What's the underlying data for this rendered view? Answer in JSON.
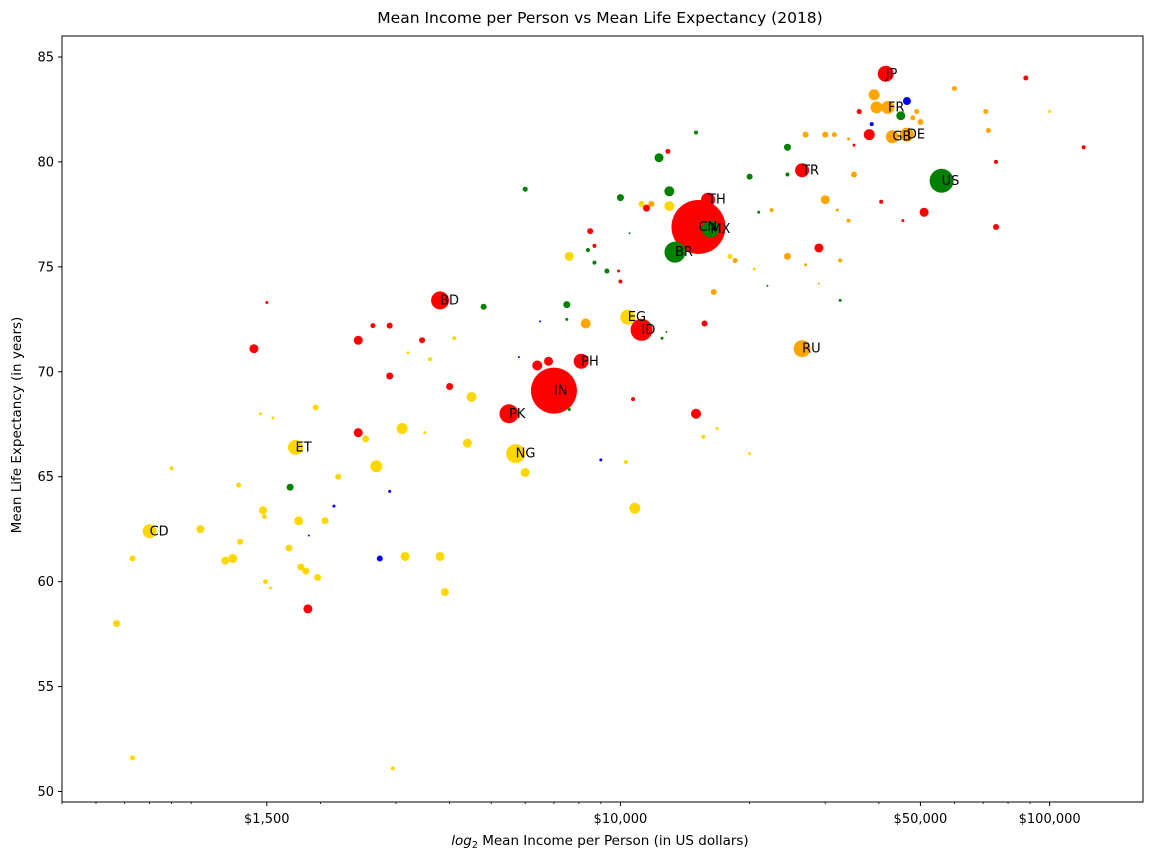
{
  "chart_data": {
    "type": "scatter",
    "title": "Mean Income per Person vs Mean Life Expectancy (2018)",
    "xlabel_prefix": "log",
    "xlabel_sub": "2",
    "xlabel_rest": " Mean Income per Person (in US dollars)",
    "ylabel": "Mean Life Expectancy (in years)",
    "x_scale": "log",
    "xlim": [
      500,
      165000
    ],
    "ylim": [
      49.5,
      86
    ],
    "x_ticks": [
      {
        "value": 1500,
        "label": "$1,500"
      },
      {
        "value": 10000,
        "label": "$10,000"
      },
      {
        "value": 50000,
        "label": "$50,000"
      },
      {
        "value": 100000,
        "label": "$100,000"
      }
    ],
    "y_ticks": [
      {
        "value": 50,
        "label": "50"
      },
      {
        "value": 55,
        "label": "55"
      },
      {
        "value": 60,
        "label": "60"
      },
      {
        "value": 65,
        "label": "65"
      },
      {
        "value": 70,
        "label": "70"
      },
      {
        "value": 75,
        "label": "75"
      },
      {
        "value": 80,
        "label": "80"
      },
      {
        "value": 85,
        "label": "85"
      }
    ],
    "grid": false,
    "legend": "none",
    "colors": {
      "red": "#ff0000",
      "gold": "#ffd700",
      "orange": "#ffa500",
      "green": "#008000",
      "blue": "#0000ff"
    },
    "points": [
      {
        "x": 15200,
        "y": 76.9,
        "r": 27,
        "c": "red",
        "label": "CN"
      },
      {
        "x": 7000,
        "y": 69.1,
        "r": 23,
        "c": "red",
        "label": "IN"
      },
      {
        "x": 56000,
        "y": 79.1,
        "r": 12,
        "c": "green",
        "label": "US"
      },
      {
        "x": 11200,
        "y": 72.0,
        "r": 11,
        "c": "red",
        "label": "ID"
      },
      {
        "x": 13400,
        "y": 75.7,
        "r": 10.5,
        "c": "green",
        "label": "BR"
      },
      {
        "x": 5500,
        "y": 68.0,
        "r": 9.5,
        "c": "red",
        "label": "PK"
      },
      {
        "x": 5700,
        "y": 66.1,
        "r": 9.5,
        "c": "gold",
        "label": "NG"
      },
      {
        "x": 3800,
        "y": 73.4,
        "r": 9,
        "c": "red",
        "label": "BD"
      },
      {
        "x": 26500,
        "y": 71.1,
        "r": 8.5,
        "c": "orange",
        "label": "RU"
      },
      {
        "x": 16200,
        "y": 76.8,
        "r": 8.5,
        "c": "green",
        "label": "MX"
      },
      {
        "x": 41500,
        "y": 84.2,
        "r": 8,
        "c": "red",
        "label": "JP"
      },
      {
        "x": 1750,
        "y": 66.4,
        "r": 7.5,
        "c": "gold",
        "label": "ET"
      },
      {
        "x": 8100,
        "y": 70.5,
        "r": 7.5,
        "c": "red",
        "label": "PH"
      },
      {
        "x": 10400,
        "y": 72.6,
        "r": 7.5,
        "c": "gold",
        "label": "EG"
      },
      {
        "x": 26500,
        "y": 79.6,
        "r": 7,
        "c": "red",
        "label": "TR"
      },
      {
        "x": 16000,
        "y": 78.2,
        "r": 7,
        "c": "red",
        "label": "TH"
      },
      {
        "x": 46500,
        "y": 81.3,
        "r": 7,
        "c": "orange",
        "label": "DE"
      },
      {
        "x": 43000,
        "y": 81.2,
        "r": 6.5,
        "c": "orange",
        "label": "GB"
      },
      {
        "x": 42000,
        "y": 82.6,
        "r": 6.5,
        "c": "orange",
        "label": "FR"
      },
      {
        "x": 800,
        "y": 62.4,
        "r": 7,
        "c": "gold",
        "label": "CD"
      },
      {
        "x": 39000,
        "y": 83.2,
        "r": 5.5,
        "c": "orange"
      },
      {
        "x": 39500,
        "y": 82.6,
        "r": 6,
        "c": "orange"
      },
      {
        "x": 38000,
        "y": 81.3,
        "r": 5.5,
        "c": "red"
      },
      {
        "x": 46500,
        "y": 82.9,
        "r": 4,
        "c": "blue"
      },
      {
        "x": 45000,
        "y": 82.2,
        "r": 4.5,
        "c": "green"
      },
      {
        "x": 48000,
        "y": 82.1,
        "r": 2.5,
        "c": "orange"
      },
      {
        "x": 50000,
        "y": 81.9,
        "r": 3,
        "c": "orange"
      },
      {
        "x": 49000,
        "y": 82.4,
        "r": 2.5,
        "c": "orange"
      },
      {
        "x": 36000,
        "y": 82.4,
        "r": 2.5,
        "c": "red"
      },
      {
        "x": 38500,
        "y": 81.8,
        "r": 2,
        "c": "blue"
      },
      {
        "x": 60000,
        "y": 83.5,
        "r": 2.5,
        "c": "orange"
      },
      {
        "x": 71000,
        "y": 82.4,
        "r": 2.5,
        "c": "orange"
      },
      {
        "x": 72000,
        "y": 81.5,
        "r": 2.5,
        "c": "orange"
      },
      {
        "x": 88000,
        "y": 84.0,
        "r": 2.5,
        "c": "red"
      },
      {
        "x": 100000,
        "y": 82.4,
        "r": 1.5,
        "c": "gold"
      },
      {
        "x": 120000,
        "y": 80.7,
        "r": 2,
        "c": "red"
      },
      {
        "x": 75000,
        "y": 80.0,
        "r": 2,
        "c": "red"
      },
      {
        "x": 75000,
        "y": 76.9,
        "r": 3,
        "c": "red"
      },
      {
        "x": 51000,
        "y": 77.6,
        "r": 4.5,
        "c": "red"
      },
      {
        "x": 45500,
        "y": 77.2,
        "r": 1.5,
        "c": "red"
      },
      {
        "x": 40500,
        "y": 78.1,
        "r": 2,
        "c": "red"
      },
      {
        "x": 31500,
        "y": 81.3,
        "r": 2.5,
        "c": "orange"
      },
      {
        "x": 30000,
        "y": 81.3,
        "r": 3,
        "c": "orange"
      },
      {
        "x": 27000,
        "y": 81.3,
        "r": 3,
        "c": "orange"
      },
      {
        "x": 24500,
        "y": 80.7,
        "r": 3.5,
        "c": "green"
      },
      {
        "x": 34000,
        "y": 81.1,
        "r": 1.5,
        "c": "orange"
      },
      {
        "x": 35000,
        "y": 80.8,
        "r": 1.5,
        "c": "red"
      },
      {
        "x": 20000,
        "y": 79.3,
        "r": 3,
        "c": "green"
      },
      {
        "x": 24500,
        "y": 79.4,
        "r": 2,
        "c": "green"
      },
      {
        "x": 30000,
        "y": 78.2,
        "r": 4.5,
        "c": "orange"
      },
      {
        "x": 35000,
        "y": 79.4,
        "r": 3,
        "c": "orange"
      },
      {
        "x": 32000,
        "y": 77.7,
        "r": 1.5,
        "c": "orange"
      },
      {
        "x": 34000,
        "y": 77.2,
        "r": 2,
        "c": "orange"
      },
      {
        "x": 22500,
        "y": 77.7,
        "r": 2,
        "c": "orange"
      },
      {
        "x": 21000,
        "y": 77.6,
        "r": 1.5,
        "c": "green"
      },
      {
        "x": 29000,
        "y": 75.9,
        "r": 4.5,
        "c": "red"
      },
      {
        "x": 24500,
        "y": 75.5,
        "r": 3.5,
        "c": "orange"
      },
      {
        "x": 32500,
        "y": 75.3,
        "r": 2,
        "c": "orange"
      },
      {
        "x": 27000,
        "y": 75.1,
        "r": 1.5,
        "c": "orange"
      },
      {
        "x": 29000,
        "y": 74.2,
        "r": 1,
        "c": "orange"
      },
      {
        "x": 22000,
        "y": 74.1,
        "r": 1,
        "c": "green"
      },
      {
        "x": 32500,
        "y": 73.4,
        "r": 1.5,
        "c": "green"
      },
      {
        "x": 20500,
        "y": 74.9,
        "r": 1.5,
        "c": "gold"
      },
      {
        "x": 18000,
        "y": 75.5,
        "r": 2.5,
        "c": "gold"
      },
      {
        "x": 18500,
        "y": 75.3,
        "r": 2.5,
        "c": "orange"
      },
      {
        "x": 16500,
        "y": 73.8,
        "r": 3,
        "c": "orange"
      },
      {
        "x": 15700,
        "y": 72.3,
        "r": 3,
        "c": "red"
      },
      {
        "x": 16800,
        "y": 67.3,
        "r": 1.5,
        "c": "gold"
      },
      {
        "x": 15600,
        "y": 66.9,
        "r": 2,
        "c": "gold"
      },
      {
        "x": 15000,
        "y": 68.0,
        "r": 5,
        "c": "red"
      },
      {
        "x": 20000,
        "y": 66.1,
        "r": 1.5,
        "c": "gold"
      },
      {
        "x": 12500,
        "y": 71.6,
        "r": 1.5,
        "c": "green"
      },
      {
        "x": 12800,
        "y": 71.9,
        "r": 1,
        "c": "green"
      },
      {
        "x": 10700,
        "y": 68.7,
        "r": 2,
        "c": "red"
      },
      {
        "x": 10800,
        "y": 63.5,
        "r": 5.5,
        "c": "gold"
      },
      {
        "x": 10300,
        "y": 65.7,
        "r": 2,
        "c": "gold"
      },
      {
        "x": 9000,
        "y": 65.8,
        "r": 1.5,
        "c": "blue"
      },
      {
        "x": 13000,
        "y": 78.6,
        "r": 5,
        "c": "green"
      },
      {
        "x": 13000,
        "y": 77.9,
        "r": 5,
        "c": "gold"
      },
      {
        "x": 12300,
        "y": 80.2,
        "r": 4.5,
        "c": "green"
      },
      {
        "x": 12900,
        "y": 80.5,
        "r": 2.5,
        "c": "red"
      },
      {
        "x": 11800,
        "y": 78.0,
        "r": 3,
        "c": "orange"
      },
      {
        "x": 11500,
        "y": 77.8,
        "r": 3.5,
        "c": "red"
      },
      {
        "x": 11200,
        "y": 78.0,
        "r": 3,
        "c": "gold"
      },
      {
        "x": 15000,
        "y": 81.4,
        "r": 2,
        "c": "green"
      },
      {
        "x": 10500,
        "y": 76.6,
        "r": 1,
        "c": "green"
      },
      {
        "x": 10000,
        "y": 78.3,
        "r": 3.5,
        "c": "green"
      },
      {
        "x": 8500,
        "y": 76.7,
        "r": 3,
        "c": "red"
      },
      {
        "x": 8400,
        "y": 75.8,
        "r": 2,
        "c": "green"
      },
      {
        "x": 8700,
        "y": 76.0,
        "r": 2,
        "c": "red"
      },
      {
        "x": 8700,
        "y": 75.2,
        "r": 2,
        "c": "green"
      },
      {
        "x": 9300,
        "y": 74.8,
        "r": 2.5,
        "c": "green"
      },
      {
        "x": 9900,
        "y": 74.8,
        "r": 1.5,
        "c": "red"
      },
      {
        "x": 10000,
        "y": 74.3,
        "r": 2,
        "c": "red"
      },
      {
        "x": 7600,
        "y": 75.5,
        "r": 4.5,
        "c": "gold"
      },
      {
        "x": 7500,
        "y": 73.2,
        "r": 3.5,
        "c": "green"
      },
      {
        "x": 8300,
        "y": 72.3,
        "r": 5,
        "c": "orange"
      },
      {
        "x": 7500,
        "y": 72.5,
        "r": 1.5,
        "c": "green"
      },
      {
        "x": 6000,
        "y": 78.7,
        "r": 2.5,
        "c": "green"
      },
      {
        "x": 6500,
        "y": 72.4,
        "r": 1,
        "c": "blue"
      },
      {
        "x": 4800,
        "y": 73.1,
        "r": 3,
        "c": "green"
      },
      {
        "x": 5800,
        "y": 70.7,
        "r": 1,
        "c": "blue"
      },
      {
        "x": 6400,
        "y": 70.3,
        "r": 5,
        "c": "red"
      },
      {
        "x": 6800,
        "y": 70.5,
        "r": 4.5,
        "c": "red"
      },
      {
        "x": 7600,
        "y": 68.2,
        "r": 1.5,
        "c": "green"
      },
      {
        "x": 6000,
        "y": 65.2,
        "r": 4.5,
        "c": "gold"
      },
      {
        "x": 4500,
        "y": 68.8,
        "r": 5,
        "c": "gold"
      },
      {
        "x": 4400,
        "y": 66.6,
        "r": 4.5,
        "c": "gold"
      },
      {
        "x": 4100,
        "y": 71.6,
        "r": 2,
        "c": "gold"
      },
      {
        "x": 4000,
        "y": 69.3,
        "r": 3.5,
        "c": "red"
      },
      {
        "x": 3800,
        "y": 61.2,
        "r": 4.5,
        "c": "gold"
      },
      {
        "x": 3900,
        "y": 59.5,
        "r": 4,
        "c": "gold"
      },
      {
        "x": 3600,
        "y": 70.6,
        "r": 2,
        "c": "gold"
      },
      {
        "x": 3450,
        "y": 71.5,
        "r": 3,
        "c": "red"
      },
      {
        "x": 3500,
        "y": 67.1,
        "r": 1.5,
        "c": "gold"
      },
      {
        "x": 3200,
        "y": 70.9,
        "r": 1.5,
        "c": "gold"
      },
      {
        "x": 3100,
        "y": 67.3,
        "r": 5.5,
        "c": "gold"
      },
      {
        "x": 3150,
        "y": 61.2,
        "r": 4.5,
        "c": "gold"
      },
      {
        "x": 2900,
        "y": 72.2,
        "r": 3,
        "c": "red"
      },
      {
        "x": 2900,
        "y": 69.8,
        "r": 3.5,
        "c": "red"
      },
      {
        "x": 2950,
        "y": 51.1,
        "r": 2,
        "c": "gold"
      },
      {
        "x": 2900,
        "y": 64.3,
        "r": 1.5,
        "c": "blue"
      },
      {
        "x": 2650,
        "y": 72.2,
        "r": 2.5,
        "c": "red"
      },
      {
        "x": 2700,
        "y": 65.5,
        "r": 6,
        "c": "gold"
      },
      {
        "x": 2750,
        "y": 61.1,
        "r": 3,
        "c": "blue"
      },
      {
        "x": 2450,
        "y": 71.5,
        "r": 4.5,
        "c": "red"
      },
      {
        "x": 2450,
        "y": 67.1,
        "r": 4.5,
        "c": "red"
      },
      {
        "x": 2550,
        "y": 66.8,
        "r": 3.5,
        "c": "gold"
      },
      {
        "x": 2200,
        "y": 65.0,
        "r": 3,
        "c": "gold"
      },
      {
        "x": 2150,
        "y": 63.6,
        "r": 1.5,
        "c": "blue"
      },
      {
        "x": 2050,
        "y": 62.9,
        "r": 3.5,
        "c": "gold"
      },
      {
        "x": 1970,
        "y": 60.2,
        "r": 3.5,
        "c": "gold"
      },
      {
        "x": 1950,
        "y": 68.3,
        "r": 3,
        "c": "gold"
      },
      {
        "x": 1880,
        "y": 62.2,
        "r": 1,
        "c": "blue"
      },
      {
        "x": 1870,
        "y": 58.7,
        "r": 4.5,
        "c": "red"
      },
      {
        "x": 1850,
        "y": 60.5,
        "r": 3.5,
        "c": "gold"
      },
      {
        "x": 1800,
        "y": 60.7,
        "r": 3.5,
        "c": "gold"
      },
      {
        "x": 1780,
        "y": 62.9,
        "r": 4.5,
        "c": "gold"
      },
      {
        "x": 1700,
        "y": 64.5,
        "r": 3.5,
        "c": "green"
      },
      {
        "x": 1690,
        "y": 61.6,
        "r": 3.5,
        "c": "gold"
      },
      {
        "x": 1550,
        "y": 67.8,
        "r": 1.5,
        "c": "gold"
      },
      {
        "x": 1530,
        "y": 59.7,
        "r": 1.5,
        "c": "gold"
      },
      {
        "x": 1500,
        "y": 73.3,
        "r": 1.5,
        "c": "red"
      },
      {
        "x": 1490,
        "y": 60.0,
        "r": 2.5,
        "c": "gold"
      },
      {
        "x": 1480,
        "y": 63.1,
        "r": 2.5,
        "c": "gold"
      },
      {
        "x": 1470,
        "y": 63.4,
        "r": 4,
        "c": "gold"
      },
      {
        "x": 1450,
        "y": 68.0,
        "r": 1.5,
        "c": "gold"
      },
      {
        "x": 1400,
        "y": 71.1,
        "r": 4.5,
        "c": "red"
      },
      {
        "x": 1300,
        "y": 61.9,
        "r": 3,
        "c": "gold"
      },
      {
        "x": 1290,
        "y": 64.6,
        "r": 2.5,
        "c": "gold"
      },
      {
        "x": 1250,
        "y": 61.1,
        "r": 4.5,
        "c": "gold"
      },
      {
        "x": 1200,
        "y": 61.0,
        "r": 4,
        "c": "gold"
      },
      {
        "x": 1050,
        "y": 62.5,
        "r": 4,
        "c": "gold"
      },
      {
        "x": 900,
        "y": 65.4,
        "r": 2,
        "c": "gold"
      },
      {
        "x": 730,
        "y": 61.1,
        "r": 3,
        "c": "gold"
      },
      {
        "x": 730,
        "y": 51.6,
        "r": 2.5,
        "c": "gold"
      },
      {
        "x": 670,
        "y": 58.0,
        "r": 3.5,
        "c": "gold"
      }
    ]
  }
}
